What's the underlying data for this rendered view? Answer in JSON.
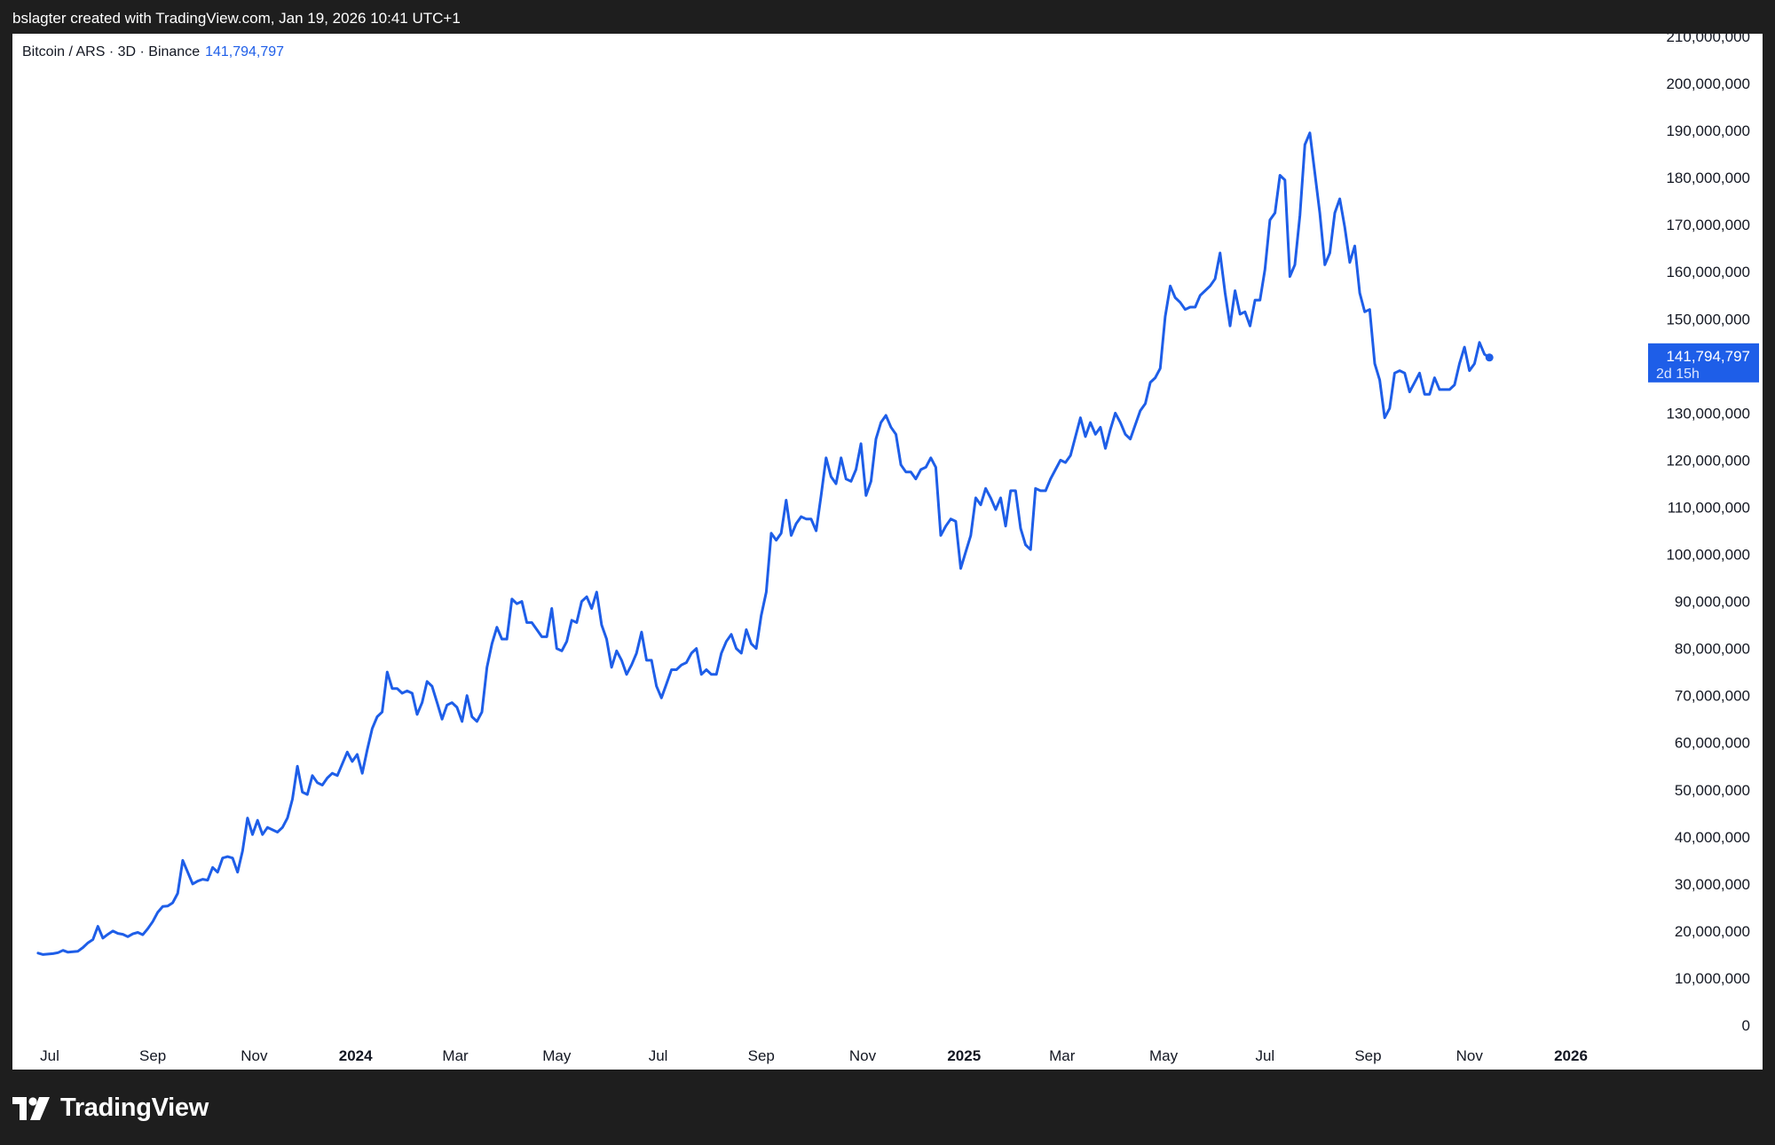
{
  "header": {
    "credit": "bslagter created with TradingView.com, Jan 19, 2026 10:41 UTC+1"
  },
  "legend": {
    "symbol": "Bitcoin / ARS · 3D · Binance",
    "last_value": "141,794,797"
  },
  "price_badge": {
    "price": "141,794,797",
    "countdown": "2d 15h"
  },
  "footer": {
    "brand": "TradingView"
  },
  "colors": {
    "line": "#1e5ee8",
    "badge": "#1e5ee8",
    "background": "#ffffff",
    "frame": "#1e1e1e"
  },
  "chart_data": {
    "type": "line",
    "title": "Bitcoin / ARS · 3D · Binance",
    "series_name": "",
    "ylim": [
      0,
      210000000
    ],
    "y_ticks": [
      0,
      10000000,
      20000000,
      30000000,
      40000000,
      50000000,
      60000000,
      70000000,
      80000000,
      90000000,
      100000000,
      110000000,
      120000000,
      130000000,
      140000000,
      150000000,
      160000000,
      170000000,
      180000000,
      190000000,
      200000000,
      210000000
    ],
    "y_tick_labels": [
      "0",
      "10,000,000",
      "20,000,000",
      "30,000,000",
      "40,000,000",
      "50,000,000",
      "60,000,000",
      "70,000,000",
      "80,000,000",
      "90,000,000",
      "100,000,000",
      "110,000,000",
      "120,000,000",
      "130,000,000",
      "140,000,000",
      "150,000,000",
      "160,000,000",
      "170,000,000",
      "180,000,000",
      "190,000,000",
      "200,000,000",
      "210,000,000"
    ],
    "x_ticks": [
      {
        "label": "Jul",
        "date": "2023-07-01",
        "bold": false
      },
      {
        "label": "Sep",
        "date": "2023-09-01",
        "bold": false
      },
      {
        "label": "Nov",
        "date": "2023-11-01",
        "bold": false
      },
      {
        "label": "2024",
        "date": "2024-01-01",
        "bold": true
      },
      {
        "label": "Mar",
        "date": "2024-03-01",
        "bold": false
      },
      {
        "label": "May",
        "date": "2024-05-01",
        "bold": false
      },
      {
        "label": "Jul",
        "date": "2024-07-01",
        "bold": false
      },
      {
        "label": "Sep",
        "date": "2024-09-01",
        "bold": false
      },
      {
        "label": "Nov",
        "date": "2024-11-01",
        "bold": false
      },
      {
        "label": "2025",
        "date": "2025-01-01",
        "bold": true
      },
      {
        "label": "Mar",
        "date": "2025-03-01",
        "bold": false
      },
      {
        "label": "May",
        "date": "2025-05-01",
        "bold": false
      },
      {
        "label": "Jul",
        "date": "2025-07-01",
        "bold": false
      },
      {
        "label": "Sep",
        "date": "2025-09-01",
        "bold": false
      },
      {
        "label": "Nov",
        "date": "2025-11-01",
        "bold": false
      },
      {
        "label": "2026",
        "date": "2026-01-01",
        "bold": true
      }
    ],
    "points": [
      [
        "2023-06-24",
        15300000
      ],
      [
        "2023-06-27",
        15000000
      ],
      [
        "2023-06-30",
        15100000
      ],
      [
        "2023-07-03",
        15200000
      ],
      [
        "2023-07-06",
        15400000
      ],
      [
        "2023-07-09",
        15900000
      ],
      [
        "2023-07-12",
        15500000
      ],
      [
        "2023-07-15",
        15600000
      ],
      [
        "2023-07-18",
        15700000
      ],
      [
        "2023-07-21",
        16500000
      ],
      [
        "2023-07-24",
        17500000
      ],
      [
        "2023-07-27",
        18200000
      ],
      [
        "2023-07-30",
        21000000
      ],
      [
        "2023-08-02",
        18500000
      ],
      [
        "2023-08-05",
        19300000
      ],
      [
        "2023-08-08",
        20000000
      ],
      [
        "2023-08-11",
        19500000
      ],
      [
        "2023-08-14",
        19300000
      ],
      [
        "2023-08-17",
        18800000
      ],
      [
        "2023-08-20",
        19400000
      ],
      [
        "2023-08-23",
        19700000
      ],
      [
        "2023-08-26",
        19200000
      ],
      [
        "2023-08-29",
        20500000
      ],
      [
        "2023-09-01",
        22000000
      ],
      [
        "2023-09-04",
        24000000
      ],
      [
        "2023-09-07",
        25200000
      ],
      [
        "2023-09-10",
        25300000
      ],
      [
        "2023-09-13",
        26000000
      ],
      [
        "2023-09-16",
        28000000
      ],
      [
        "2023-09-19",
        35000000
      ],
      [
        "2023-09-22",
        32500000
      ],
      [
        "2023-09-25",
        30000000
      ],
      [
        "2023-09-28",
        30600000
      ],
      [
        "2023-10-01",
        31000000
      ],
      [
        "2023-10-04",
        30800000
      ],
      [
        "2023-10-07",
        33500000
      ],
      [
        "2023-10-10",
        32500000
      ],
      [
        "2023-10-13",
        35500000
      ],
      [
        "2023-10-16",
        35800000
      ],
      [
        "2023-10-19",
        35500000
      ],
      [
        "2023-10-22",
        32500000
      ],
      [
        "2023-10-25",
        37000000
      ],
      [
        "2023-10-28",
        44000000
      ],
      [
        "2023-10-31",
        40500000
      ],
      [
        "2023-11-03",
        43500000
      ],
      [
        "2023-11-06",
        40500000
      ],
      [
        "2023-11-09",
        42000000
      ],
      [
        "2023-11-12",
        41500000
      ],
      [
        "2023-11-15",
        41000000
      ],
      [
        "2023-11-18",
        42000000
      ],
      [
        "2023-11-21",
        44000000
      ],
      [
        "2023-11-24",
        48000000
      ],
      [
        "2023-11-27",
        55000000
      ],
      [
        "2023-11-30",
        49500000
      ],
      [
        "2023-12-03",
        49000000
      ],
      [
        "2023-12-06",
        53000000
      ],
      [
        "2023-12-09",
        51500000
      ],
      [
        "2023-12-12",
        51000000
      ],
      [
        "2023-12-15",
        52500000
      ],
      [
        "2023-12-18",
        53500000
      ],
      [
        "2023-12-21",
        53000000
      ],
      [
        "2023-12-24",
        55500000
      ],
      [
        "2023-12-27",
        58000000
      ],
      [
        "2023-12-30",
        56000000
      ],
      [
        "2024-01-02",
        57500000
      ],
      [
        "2024-01-05",
        53500000
      ],
      [
        "2024-01-08",
        58500000
      ],
      [
        "2024-01-11",
        63000000
      ],
      [
        "2024-01-14",
        65500000
      ],
      [
        "2024-01-17",
        66500000
      ],
      [
        "2024-01-20",
        75000000
      ],
      [
        "2024-01-23",
        71500000
      ],
      [
        "2024-01-26",
        71500000
      ],
      [
        "2024-01-29",
        70500000
      ],
      [
        "2024-02-01",
        71000000
      ],
      [
        "2024-02-04",
        70500000
      ],
      [
        "2024-02-07",
        66000000
      ],
      [
        "2024-02-10",
        68500000
      ],
      [
        "2024-02-13",
        73000000
      ],
      [
        "2024-02-16",
        72000000
      ],
      [
        "2024-02-19",
        68500000
      ],
      [
        "2024-02-22",
        65000000
      ],
      [
        "2024-02-25",
        68000000
      ],
      [
        "2024-02-28",
        68500000
      ],
      [
        "2024-03-02",
        67500000
      ],
      [
        "2024-03-05",
        64500000
      ],
      [
        "2024-03-08",
        70000000
      ],
      [
        "2024-03-11",
        65500000
      ],
      [
        "2024-03-14",
        64500000
      ],
      [
        "2024-03-17",
        66500000
      ],
      [
        "2024-03-20",
        76000000
      ],
      [
        "2024-03-23",
        81000000
      ],
      [
        "2024-03-26",
        84500000
      ],
      [
        "2024-03-29",
        82000000
      ],
      [
        "2024-04-01",
        82000000
      ],
      [
        "2024-04-04",
        90500000
      ],
      [
        "2024-04-07",
        89500000
      ],
      [
        "2024-04-10",
        90000000
      ],
      [
        "2024-04-13",
        85500000
      ],
      [
        "2024-04-16",
        85500000
      ],
      [
        "2024-04-19",
        84000000
      ],
      [
        "2024-04-22",
        82500000
      ],
      [
        "2024-04-25",
        82500000
      ],
      [
        "2024-04-28",
        88500000
      ],
      [
        "2024-05-01",
        80000000
      ],
      [
        "2024-05-04",
        79500000
      ],
      [
        "2024-05-07",
        81500000
      ],
      [
        "2024-05-10",
        86000000
      ],
      [
        "2024-05-13",
        85500000
      ],
      [
        "2024-05-16",
        90000000
      ],
      [
        "2024-05-19",
        91000000
      ],
      [
        "2024-05-22",
        88500000
      ],
      [
        "2024-05-25",
        92000000
      ],
      [
        "2024-05-28",
        85000000
      ],
      [
        "2024-05-31",
        82000000
      ],
      [
        "2024-06-03",
        76000000
      ],
      [
        "2024-06-06",
        79500000
      ],
      [
        "2024-06-09",
        77500000
      ],
      [
        "2024-06-12",
        74500000
      ],
      [
        "2024-06-15",
        76500000
      ],
      [
        "2024-06-18",
        79000000
      ],
      [
        "2024-06-21",
        83500000
      ],
      [
        "2024-06-24",
        77500000
      ],
      [
        "2024-06-27",
        77500000
      ],
      [
        "2024-06-30",
        72000000
      ],
      [
        "2024-07-03",
        69500000
      ],
      [
        "2024-07-06",
        72500000
      ],
      [
        "2024-07-09",
        75500000
      ],
      [
        "2024-07-12",
        75500000
      ],
      [
        "2024-07-15",
        76500000
      ],
      [
        "2024-07-18",
        77000000
      ],
      [
        "2024-07-21",
        79000000
      ],
      [
        "2024-07-24",
        80000000
      ],
      [
        "2024-07-27",
        74500000
      ],
      [
        "2024-07-30",
        75500000
      ],
      [
        "2024-08-02",
        74500000
      ],
      [
        "2024-08-05",
        74500000
      ],
      [
        "2024-08-08",
        79000000
      ],
      [
        "2024-08-11",
        81500000
      ],
      [
        "2024-08-14",
        83000000
      ],
      [
        "2024-08-17",
        80000000
      ],
      [
        "2024-08-20",
        79000000
      ],
      [
        "2024-08-23",
        84000000
      ],
      [
        "2024-08-26",
        81000000
      ],
      [
        "2024-08-29",
        80000000
      ],
      [
        "2024-09-01",
        87000000
      ],
      [
        "2024-09-04",
        92000000
      ],
      [
        "2024-09-07",
        104500000
      ],
      [
        "2024-09-10",
        103000000
      ],
      [
        "2024-09-13",
        104500000
      ],
      [
        "2024-09-16",
        111500000
      ],
      [
        "2024-09-19",
        104000000
      ],
      [
        "2024-09-22",
        106500000
      ],
      [
        "2024-09-25",
        108000000
      ],
      [
        "2024-09-28",
        107500000
      ],
      [
        "2024-10-01",
        107500000
      ],
      [
        "2024-10-04",
        105000000
      ],
      [
        "2024-10-07",
        112500000
      ],
      [
        "2024-10-10",
        120500000
      ],
      [
        "2024-10-13",
        116500000
      ],
      [
        "2024-10-16",
        115000000
      ],
      [
        "2024-10-19",
        120500000
      ],
      [
        "2024-10-22",
        116000000
      ],
      [
        "2024-10-25",
        115500000
      ],
      [
        "2024-10-28",
        118000000
      ],
      [
        "2024-10-31",
        123500000
      ],
      [
        "2024-11-03",
        112500000
      ],
      [
        "2024-11-06",
        115500000
      ],
      [
        "2024-11-09",
        124500000
      ],
      [
        "2024-11-12",
        128000000
      ],
      [
        "2024-11-15",
        129500000
      ],
      [
        "2024-11-18",
        127000000
      ],
      [
        "2024-11-21",
        125500000
      ],
      [
        "2024-11-24",
        119000000
      ],
      [
        "2024-11-27",
        117500000
      ],
      [
        "2024-11-30",
        117500000
      ],
      [
        "2024-12-03",
        116000000
      ],
      [
        "2024-12-06",
        118000000
      ],
      [
        "2024-12-09",
        118500000
      ],
      [
        "2024-12-12",
        120500000
      ],
      [
        "2024-12-15",
        118500000
      ],
      [
        "2024-12-18",
        104000000
      ],
      [
        "2024-12-21",
        106000000
      ],
      [
        "2024-12-24",
        107500000
      ],
      [
        "2024-12-27",
        107000000
      ],
      [
        "2024-12-30",
        97000000
      ],
      [
        "2025-01-02",
        100500000
      ],
      [
        "2025-01-05",
        104000000
      ],
      [
        "2025-01-08",
        112000000
      ],
      [
        "2025-01-11",
        110500000
      ],
      [
        "2025-01-14",
        114000000
      ],
      [
        "2025-01-17",
        112000000
      ],
      [
        "2025-01-20",
        109500000
      ],
      [
        "2025-01-23",
        112000000
      ],
      [
        "2025-01-26",
        106000000
      ],
      [
        "2025-01-29",
        113500000
      ],
      [
        "2025-02-01",
        113500000
      ],
      [
        "2025-02-04",
        105500000
      ],
      [
        "2025-02-07",
        102000000
      ],
      [
        "2025-02-10",
        101000000
      ],
      [
        "2025-02-13",
        114000000
      ],
      [
        "2025-02-16",
        113500000
      ],
      [
        "2025-02-19",
        113500000
      ],
      [
        "2025-02-22",
        116000000
      ],
      [
        "2025-02-25",
        118000000
      ],
      [
        "2025-02-28",
        120000000
      ],
      [
        "2025-03-03",
        119500000
      ],
      [
        "2025-03-06",
        121000000
      ],
      [
        "2025-03-09",
        125000000
      ],
      [
        "2025-03-12",
        129000000
      ],
      [
        "2025-03-15",
        125000000
      ],
      [
        "2025-03-18",
        128000000
      ],
      [
        "2025-03-21",
        125500000
      ],
      [
        "2025-03-24",
        127000000
      ],
      [
        "2025-03-27",
        122500000
      ],
      [
        "2025-03-30",
        126500000
      ],
      [
        "2025-04-02",
        130000000
      ],
      [
        "2025-04-05",
        128000000
      ],
      [
        "2025-04-08",
        125500000
      ],
      [
        "2025-04-11",
        124500000
      ],
      [
        "2025-04-14",
        127500000
      ],
      [
        "2025-04-17",
        130500000
      ],
      [
        "2025-04-20",
        132000000
      ],
      [
        "2025-04-23",
        136500000
      ],
      [
        "2025-04-26",
        137500000
      ],
      [
        "2025-04-29",
        139500000
      ],
      [
        "2025-05-02",
        150500000
      ],
      [
        "2025-05-05",
        157000000
      ],
      [
        "2025-05-08",
        154500000
      ],
      [
        "2025-05-11",
        153500000
      ],
      [
        "2025-05-14",
        152000000
      ],
      [
        "2025-05-17",
        152500000
      ],
      [
        "2025-05-20",
        152500000
      ],
      [
        "2025-05-23",
        155000000
      ],
      [
        "2025-05-26",
        156000000
      ],
      [
        "2025-05-29",
        157000000
      ],
      [
        "2025-06-01",
        158500000
      ],
      [
        "2025-06-04",
        164000000
      ],
      [
        "2025-06-07",
        155500000
      ],
      [
        "2025-06-10",
        148500000
      ],
      [
        "2025-06-13",
        156000000
      ],
      [
        "2025-06-16",
        151000000
      ],
      [
        "2025-06-19",
        151500000
      ],
      [
        "2025-06-22",
        148500000
      ],
      [
        "2025-06-25",
        154000000
      ],
      [
        "2025-06-28",
        154000000
      ],
      [
        "2025-07-01",
        160500000
      ],
      [
        "2025-07-04",
        171000000
      ],
      [
        "2025-07-07",
        172500000
      ],
      [
        "2025-07-10",
        180500000
      ],
      [
        "2025-07-13",
        179500000
      ],
      [
        "2025-07-16",
        159000000
      ],
      [
        "2025-07-19",
        161500000
      ],
      [
        "2025-07-22",
        172000000
      ],
      [
        "2025-07-25",
        187000000
      ],
      [
        "2025-07-28",
        189500000
      ],
      [
        "2025-07-31",
        181000000
      ],
      [
        "2025-08-03",
        172500000
      ],
      [
        "2025-08-06",
        161500000
      ],
      [
        "2025-08-09",
        164000000
      ],
      [
        "2025-08-12",
        172500000
      ],
      [
        "2025-08-15",
        175500000
      ],
      [
        "2025-08-18",
        169500000
      ],
      [
        "2025-08-21",
        162000000
      ],
      [
        "2025-08-24",
        165500000
      ],
      [
        "2025-08-27",
        155500000
      ],
      [
        "2025-08-30",
        151500000
      ],
      [
        "2025-09-02",
        152000000
      ],
      [
        "2025-09-05",
        140500000
      ],
      [
        "2025-09-08",
        137000000
      ],
      [
        "2025-09-11",
        129000000
      ],
      [
        "2025-09-14",
        131000000
      ],
      [
        "2025-09-17",
        138500000
      ],
      [
        "2025-09-20",
        139000000
      ],
      [
        "2025-09-23",
        138500000
      ],
      [
        "2025-09-26",
        134500000
      ],
      [
        "2025-09-29",
        136500000
      ],
      [
        "2025-10-02",
        138500000
      ],
      [
        "2025-10-05",
        134000000
      ],
      [
        "2025-10-08",
        134000000
      ],
      [
        "2025-10-11",
        137500000
      ],
      [
        "2025-10-14",
        135000000
      ],
      [
        "2025-10-17",
        135000000
      ],
      [
        "2025-10-20",
        135000000
      ],
      [
        "2025-10-23",
        136000000
      ],
      [
        "2025-10-26",
        140500000
      ],
      [
        "2025-10-29",
        144000000
      ],
      [
        "2025-11-01",
        139000000
      ],
      [
        "2025-11-04",
        140500000
      ],
      [
        "2025-11-07",
        145000000
      ],
      [
        "2025-11-10",
        142500000
      ],
      [
        "2025-11-13",
        141794797
      ]
    ]
  }
}
